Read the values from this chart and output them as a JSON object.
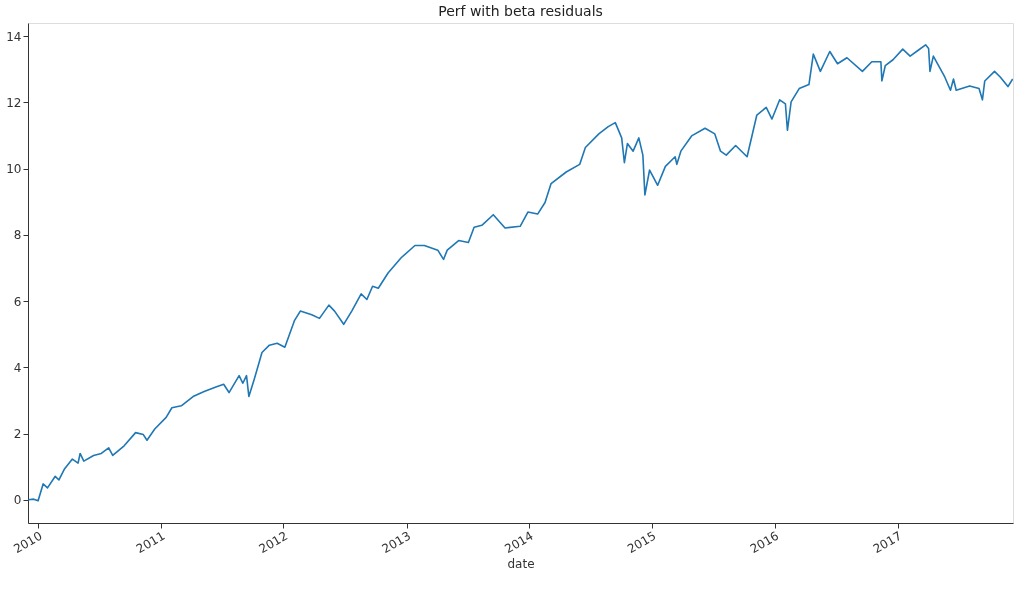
{
  "chart_data": {
    "type": "line",
    "title": "Perf with beta residuals",
    "xlabel": "date",
    "xlim": [
      "2009-12-02",
      "2017-12-10"
    ],
    "xticks": [
      "2010",
      "2011",
      "2012",
      "2013",
      "2014",
      "2015",
      "2016",
      "2017"
    ],
    "ylim": [
      -0.7,
      14.4
    ],
    "yticks": [
      0,
      2,
      4,
      6,
      8,
      10,
      12,
      14
    ],
    "grid": false,
    "marker": "none",
    "line_style": "solid",
    "x": [
      "2009-12-03",
      "2009-12-19",
      "2010-01-01",
      "2010-01-16",
      "2010-01-29",
      "2010-02-21",
      "2010-03-04",
      "2010-03-21",
      "2010-04-13",
      "2010-04-30",
      "2010-05-06",
      "2010-05-17",
      "2010-06-15",
      "2010-07-08",
      "2010-07-30",
      "2010-08-11",
      "2010-09-14",
      "2010-10-18",
      "2010-11-10",
      "2010-11-21",
      "2010-12-14",
      "2011-01-17",
      "2011-02-03",
      "2011-03-03",
      "2011-04-07",
      "2011-05-10",
      "2011-06-14",
      "2011-07-07",
      "2011-07-23",
      "2011-08-22",
      "2011-09-02",
      "2011-09-13",
      "2011-09-20",
      "2011-10-06",
      "2011-10-29",
      "2011-11-20",
      "2011-12-13",
      "2012-01-05",
      "2012-02-03",
      "2012-02-20",
      "2012-03-25",
      "2012-04-17",
      "2012-05-15",
      "2012-06-01",
      "2012-06-28",
      "2012-07-22",
      "2012-08-19",
      "2012-09-05",
      "2012-09-22",
      "2012-10-09",
      "2012-11-07",
      "2012-12-16",
      "2013-01-26",
      "2013-02-23",
      "2013-04-04",
      "2013-04-21",
      "2013-05-02",
      "2013-06-05",
      "2013-07-04",
      "2013-07-21",
      "2013-08-13",
      "2013-09-16",
      "2013-10-21",
      "2013-12-05",
      "2013-12-28",
      "2014-01-26",
      "2014-02-17",
      "2014-03-07",
      "2014-04-21",
      "2014-05-31",
      "2014-06-17",
      "2014-07-27",
      "2014-08-24",
      "2014-09-14",
      "2014-10-03",
      "2014-10-11",
      "2014-10-20",
      "2014-11-06",
      "2014-11-23",
      "2014-12-05",
      "2014-12-11",
      "2014-12-25",
      "2015-01-18",
      "2015-02-10",
      "2015-03-11",
      "2015-03-16",
      "2015-03-28",
      "2015-04-29",
      "2015-06-08",
      "2015-07-07",
      "2015-07-24",
      "2015-08-10",
      "2015-09-07",
      "2015-10-11",
      "2015-11-09",
      "2015-12-07",
      "2015-12-24",
      "2016-01-16",
      "2016-02-02",
      "2016-02-08",
      "2016-02-19",
      "2016-03-14",
      "2016-04-12",
      "2016-04-25",
      "2016-05-16",
      "2016-06-13",
      "2016-07-06",
      "2016-08-03",
      "2016-09-18",
      "2016-10-16",
      "2016-11-12",
      "2016-11-15",
      "2016-11-25",
      "2016-12-18",
      "2017-01-16",
      "2017-02-07",
      "2017-03-02",
      "2017-03-25",
      "2017-04-03",
      "2017-04-07",
      "2017-04-17",
      "2017-05-21",
      "2017-06-07",
      "2017-06-16",
      "2017-06-24",
      "2017-08-03",
      "2017-08-31",
      "2017-09-10",
      "2017-09-17",
      "2017-10-16",
      "2017-11-02",
      "2017-11-25",
      "2017-12-09"
    ],
    "series": [
      {
        "color": "#1f77b4",
        "values": [
          0,
          0.02,
          -0.03,
          0.48,
          0.36,
          0.71,
          0.6,
          0.94,
          1.23,
          1.11,
          1.4,
          1.17,
          1.34,
          1.4,
          1.57,
          1.34,
          1.63,
          2.03,
          1.97,
          1.8,
          2.14,
          2.49,
          2.78,
          2.84,
          3.12,
          3.27,
          3.41,
          3.49,
          3.24,
          3.75,
          3.52,
          3.75,
          3.12,
          3.64,
          4.45,
          4.67,
          4.73,
          4.61,
          5.42,
          5.7,
          5.59,
          5.48,
          5.88,
          5.7,
          5.3,
          5.7,
          6.22,
          6.05,
          6.45,
          6.39,
          6.85,
          7.31,
          7.68,
          7.68,
          7.54,
          7.26,
          7.54,
          7.83,
          7.77,
          8.23,
          8.29,
          8.61,
          8.21,
          8.26,
          8.69,
          8.63,
          8.98,
          9.55,
          9.9,
          10.13,
          10.64,
          11.05,
          11.27,
          11.39,
          10.93,
          10.18,
          10.76,
          10.53,
          10.93,
          10.41,
          9.21,
          9.96,
          9.5,
          10.07,
          10.36,
          10.13,
          10.53,
          10.99,
          11.22,
          11.05,
          10.53,
          10.41,
          10.7,
          10.36,
          11.62,
          11.85,
          11.5,
          12.08,
          11.96,
          11.16,
          12.02,
          12.42,
          12.54,
          13.46,
          12.94,
          13.54,
          13.17,
          13.35,
          12.94,
          13.23,
          13.23,
          12.65,
          13.11,
          13.29,
          13.61,
          13.4,
          13.57,
          13.74,
          13.63,
          12.94,
          13.4,
          12.77,
          12.37,
          12.71,
          12.37,
          12.5,
          12.42,
          12.08,
          12.65,
          12.94,
          12.77,
          12.48,
          12.71
        ]
      }
    ]
  }
}
